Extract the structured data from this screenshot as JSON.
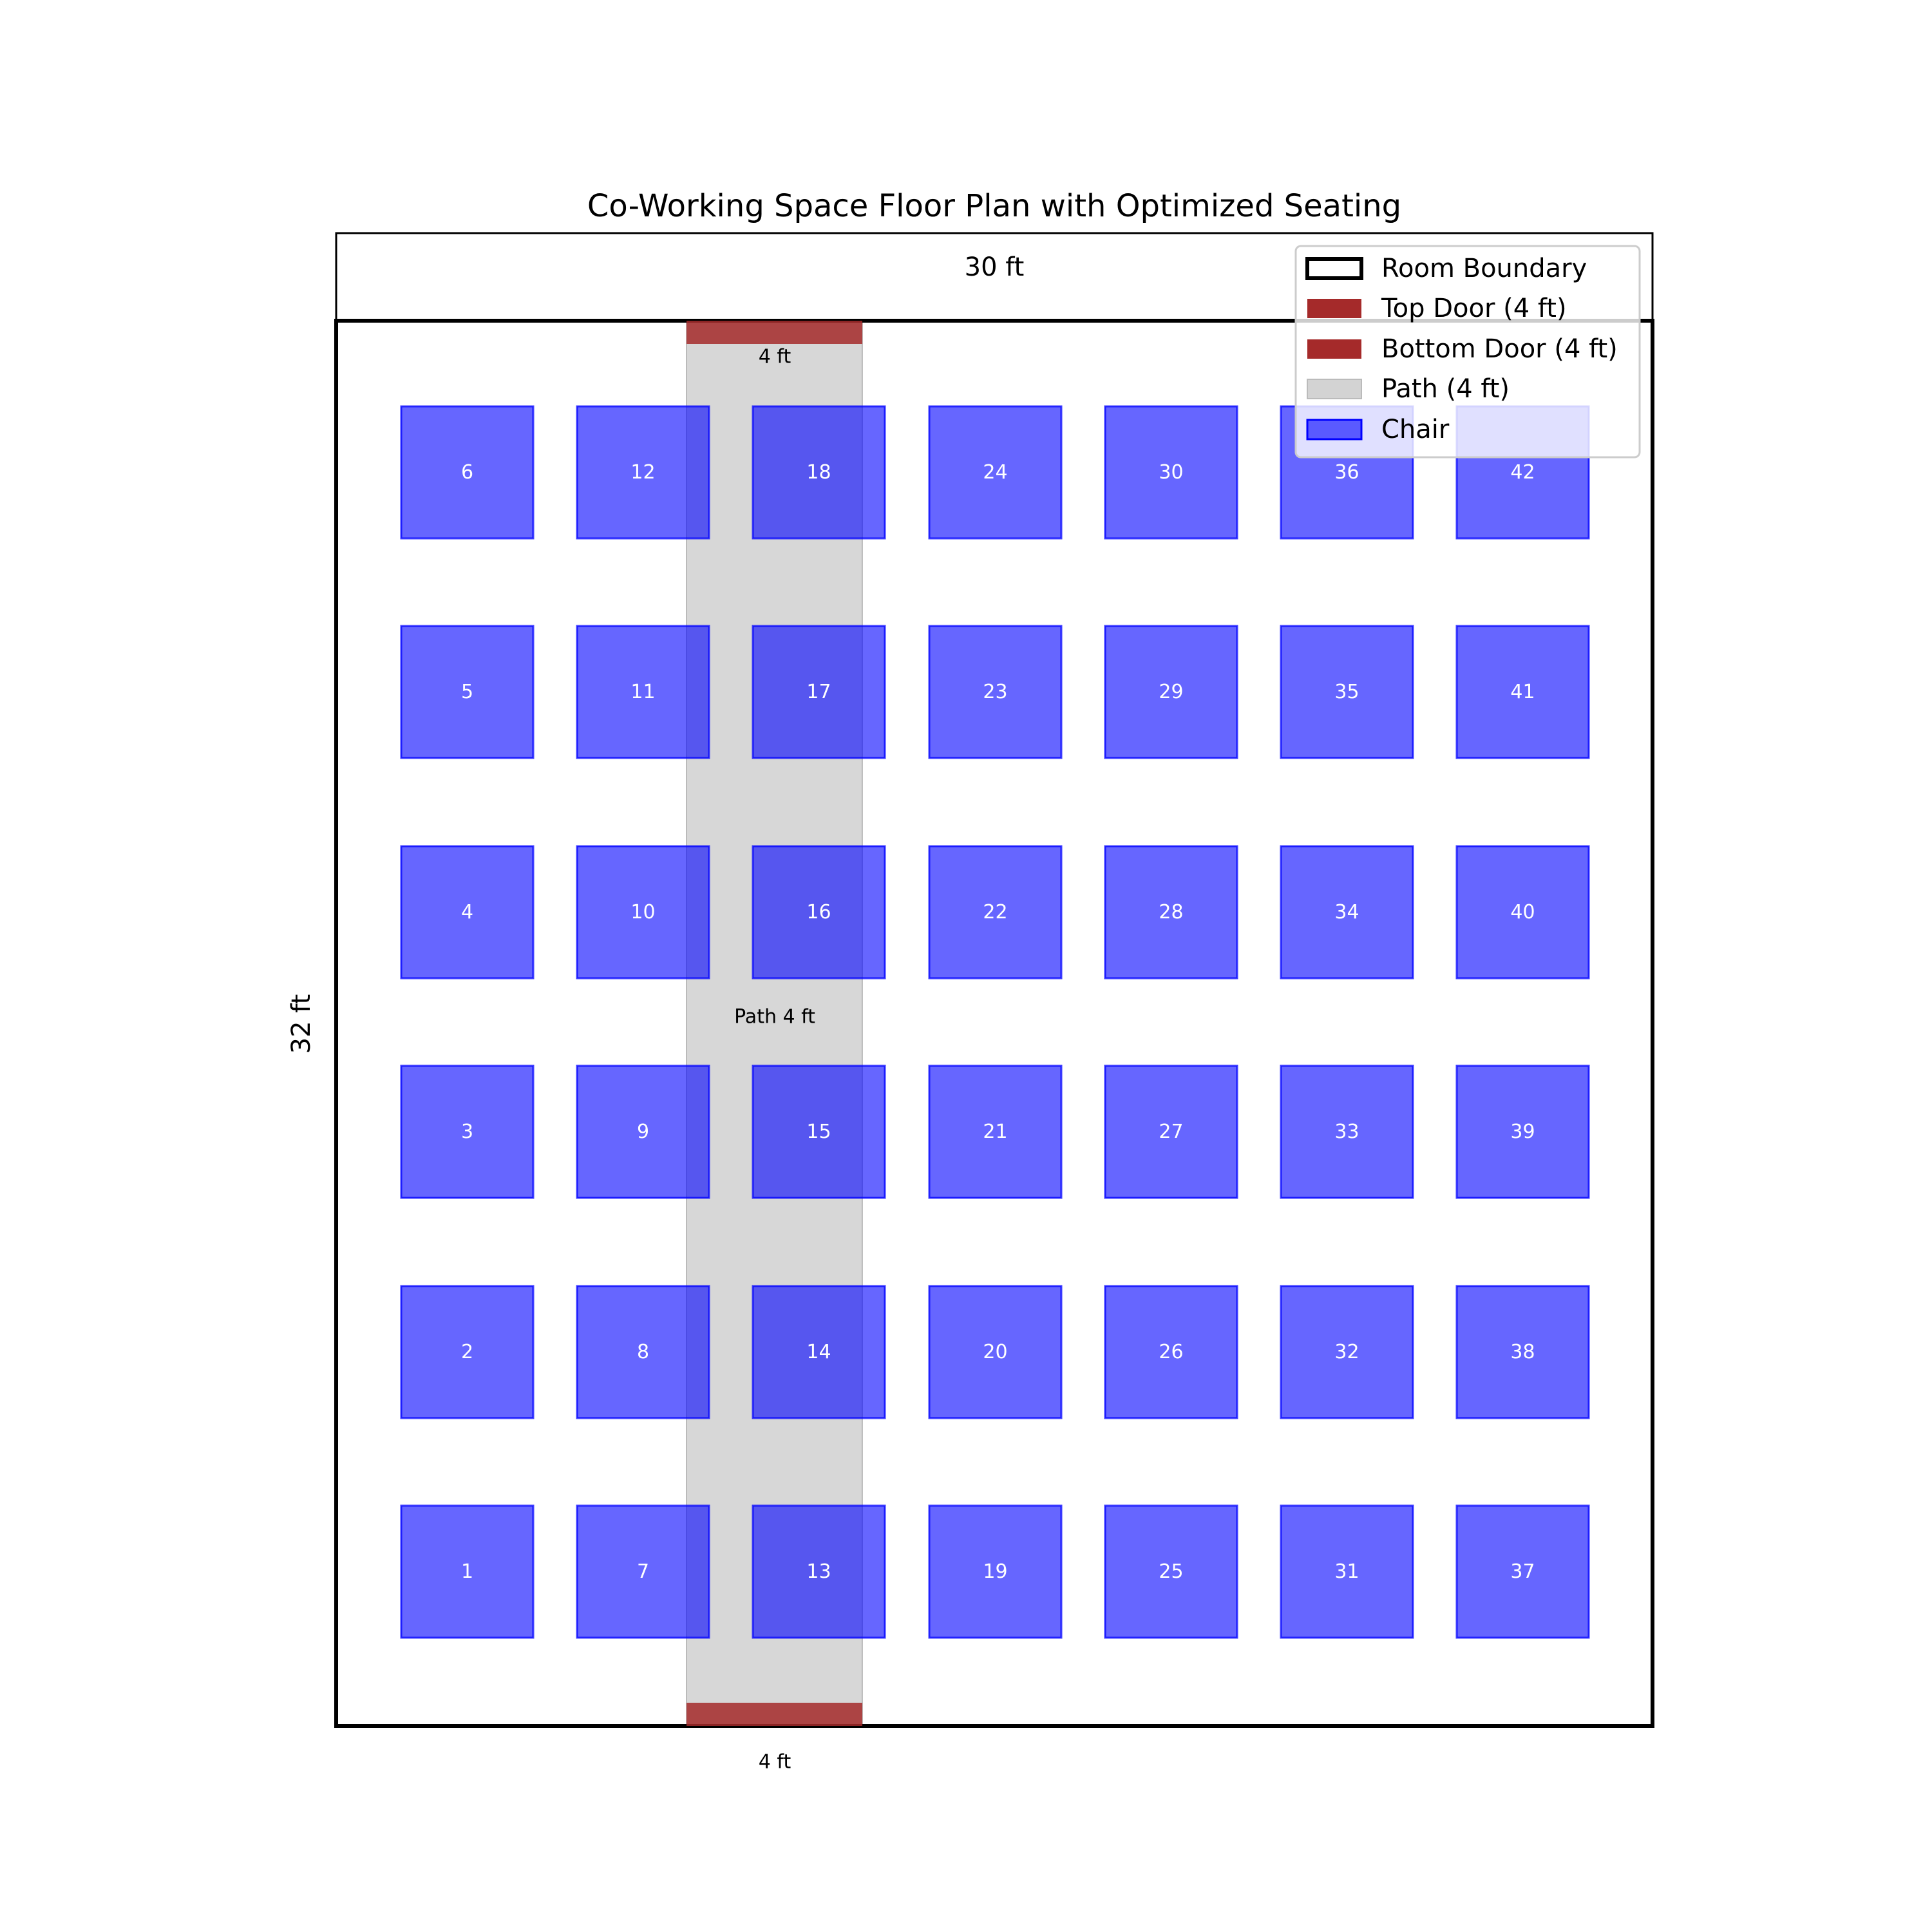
{
  "title": "Co-Working Space Floor Plan with Optimized Seating",
  "room": {
    "width_label": "30 ft",
    "height_label": "32 ft"
  },
  "doors": {
    "top_label": "4 ft",
    "bottom_label": "4 ft"
  },
  "path": {
    "label": "Path 4 ft"
  },
  "colors": {
    "door": "#a52a2a",
    "path": "#d3d3d3",
    "chair_fill": "#0000ff",
    "chair_edge": "#0000ff",
    "boundary": "#000000"
  },
  "legend": {
    "items": [
      {
        "label": "Room Boundary",
        "kind": "boundary"
      },
      {
        "label": "Top Door (4 ft)",
        "kind": "door"
      },
      {
        "label": "Bottom Door (4 ft)",
        "kind": "door"
      },
      {
        "label": "Path (4 ft)",
        "kind": "path"
      },
      {
        "label": "Chair",
        "kind": "chair"
      }
    ]
  },
  "chairs": {
    "columns": [
      [
        1,
        2,
        3,
        4,
        5,
        6
      ],
      [
        7,
        8,
        9,
        10,
        11,
        12
      ],
      [
        13,
        14,
        15,
        16,
        17,
        18
      ],
      [
        19,
        20,
        21,
        22,
        23,
        24
      ],
      [
        25,
        26,
        27,
        28,
        29,
        30
      ],
      [
        31,
        32,
        33,
        34,
        35,
        36
      ],
      [
        37,
        38,
        39,
        40,
        41,
        42
      ]
    ]
  }
}
